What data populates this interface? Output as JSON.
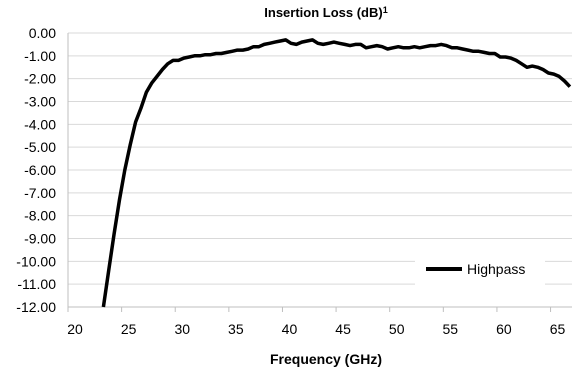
{
  "chart_data": {
    "type": "line",
    "title": "Insertion Loss (dB)",
    "title_superscript": "1",
    "xlabel": "Frequency (GHz)",
    "ylabel": "",
    "xlim": [
      20,
      67
    ],
    "ylim": [
      -12,
      0
    ],
    "x_ticks": [
      20,
      25,
      30,
      35,
      40,
      45,
      50,
      55,
      60,
      65
    ],
    "x_tick_labels": [
      "20",
      "25",
      "30",
      "35",
      "40",
      "45",
      "50",
      "55",
      "60",
      "65"
    ],
    "y_ticks": [
      0,
      -1,
      -2,
      -3,
      -4,
      -5,
      -6,
      -7,
      -8,
      -9,
      -10,
      -11,
      -12
    ],
    "y_tick_labels": [
      "0.00",
      "-1.00",
      "-2.00",
      "-3.00",
      "-4.00",
      "-5.00",
      "-6.00",
      "-7.00",
      "-8.00",
      "-9.00",
      "-10.00",
      "-11.00",
      "-12.00"
    ],
    "grid": "horizontal",
    "legend_position": "bottom-right",
    "colors": {
      "series": "#000000",
      "grid": "#d9d9d9",
      "axis": "#bfbfbf"
    },
    "series": [
      {
        "name": "Highpass",
        "x": [
          23.3,
          23.8,
          24.3,
          24.8,
          25.3,
          25.8,
          26.3,
          26.8,
          27.3,
          27.8,
          28.3,
          28.8,
          29.3,
          29.8,
          30.3,
          30.8,
          31.3,
          31.8,
          32.3,
          32.8,
          33.3,
          33.8,
          34.3,
          34.8,
          35.3,
          35.8,
          36.3,
          36.8,
          37.3,
          37.8,
          38.3,
          38.8,
          39.3,
          39.8,
          40.3,
          40.8,
          41.3,
          41.8,
          42.3,
          42.8,
          43.3,
          43.8,
          44.3,
          44.8,
          45.3,
          45.8,
          46.3,
          46.8,
          47.3,
          47.8,
          48.3,
          48.8,
          49.3,
          49.8,
          50.3,
          50.8,
          51.3,
          51.8,
          52.3,
          52.8,
          53.3,
          53.8,
          54.3,
          54.8,
          55.3,
          55.8,
          56.3,
          56.8,
          57.3,
          57.8,
          58.3,
          58.8,
          59.3,
          59.8,
          60.3,
          60.8,
          61.3,
          61.8,
          62.3,
          62.8,
          63.3,
          63.8,
          64.3,
          64.8,
          65.3,
          65.8,
          66.3,
          66.8
        ],
        "values": [
          -12.0,
          -10.4,
          -8.8,
          -7.3,
          -6.0,
          -4.9,
          -3.9,
          -3.3,
          -2.6,
          -2.2,
          -1.9,
          -1.6,
          -1.35,
          -1.2,
          -1.2,
          -1.1,
          -1.05,
          -1.0,
          -1.0,
          -0.95,
          -0.95,
          -0.9,
          -0.9,
          -0.85,
          -0.8,
          -0.75,
          -0.75,
          -0.7,
          -0.6,
          -0.6,
          -0.5,
          -0.45,
          -0.4,
          -0.35,
          -0.3,
          -0.45,
          -0.5,
          -0.4,
          -0.35,
          -0.3,
          -0.45,
          -0.5,
          -0.45,
          -0.4,
          -0.45,
          -0.5,
          -0.55,
          -0.5,
          -0.5,
          -0.65,
          -0.6,
          -0.55,
          -0.6,
          -0.7,
          -0.65,
          -0.6,
          -0.65,
          -0.65,
          -0.6,
          -0.65,
          -0.6,
          -0.55,
          -0.55,
          -0.5,
          -0.55,
          -0.65,
          -0.65,
          -0.7,
          -0.75,
          -0.8,
          -0.8,
          -0.85,
          -0.9,
          -0.9,
          -1.05,
          -1.05,
          -1.1,
          -1.2,
          -1.35,
          -1.5,
          -1.45,
          -1.5,
          -1.6,
          -1.75,
          -1.8,
          -1.9,
          -2.1,
          -2.35
        ]
      }
    ]
  }
}
